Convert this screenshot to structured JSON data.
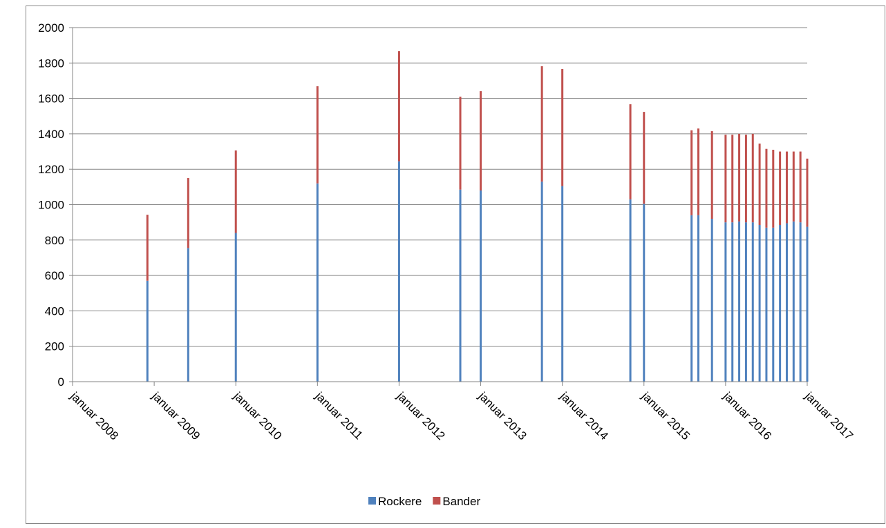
{
  "chart_data": {
    "type": "stacked-bar",
    "x": [
      "2008-12",
      "2009-06",
      "2010-01",
      "2011-01",
      "2012-01",
      "2012-10",
      "2013-01",
      "2013-10",
      "2014-01",
      "2014-11",
      "2015-01",
      "2015-08",
      "2015-09",
      "2015-11",
      "2016-01",
      "2016-02",
      "2016-03",
      "2016-04",
      "2016-05",
      "2016-06",
      "2016-07",
      "2016-08",
      "2016-09",
      "2016-10",
      "2016-11",
      "2016-12",
      "2017-01"
    ],
    "series": [
      {
        "name": "Rockere",
        "color": "#4f81bd",
        "values": [
          570,
          755,
          840,
          1120,
          1245,
          1085,
          1080,
          1130,
          1105,
          1030,
          1005,
          940,
          940,
          920,
          900,
          900,
          905,
          900,
          900,
          885,
          870,
          870,
          885,
          895,
          905,
          900,
          875
        ]
      },
      {
        "name": "Bander",
        "color": "#c0504d",
        "values": [
          373,
          395,
          466,
          549,
          622,
          525,
          561,
          652,
          661,
          537,
          519,
          480,
          490,
          495,
          495,
          495,
          495,
          495,
          500,
          460,
          445,
          440,
          415,
          405,
          395,
          400,
          385
        ]
      }
    ],
    "xlim": [
      "2008-01",
      "2017-01"
    ],
    "xticks": [
      {
        "value": "2008-01",
        "label": "januar 2008"
      },
      {
        "value": "2009-01",
        "label": "januar 2009"
      },
      {
        "value": "2010-01",
        "label": "januar 2010"
      },
      {
        "value": "2011-01",
        "label": "januar 2011"
      },
      {
        "value": "2012-01",
        "label": "januar 2012"
      },
      {
        "value": "2013-01",
        "label": "januar 2013"
      },
      {
        "value": "2014-01",
        "label": "januar 2014"
      },
      {
        "value": "2015-01",
        "label": "januar 2015"
      },
      {
        "value": "2016-01",
        "label": "januar 2016"
      },
      {
        "value": "2017-01",
        "label": "januar 2017"
      }
    ],
    "ylim": [
      0,
      2000
    ],
    "yticks": [
      0,
      200,
      400,
      600,
      800,
      1000,
      1200,
      1400,
      1600,
      1800,
      2000
    ],
    "grid": true,
    "legend": "bottom"
  }
}
